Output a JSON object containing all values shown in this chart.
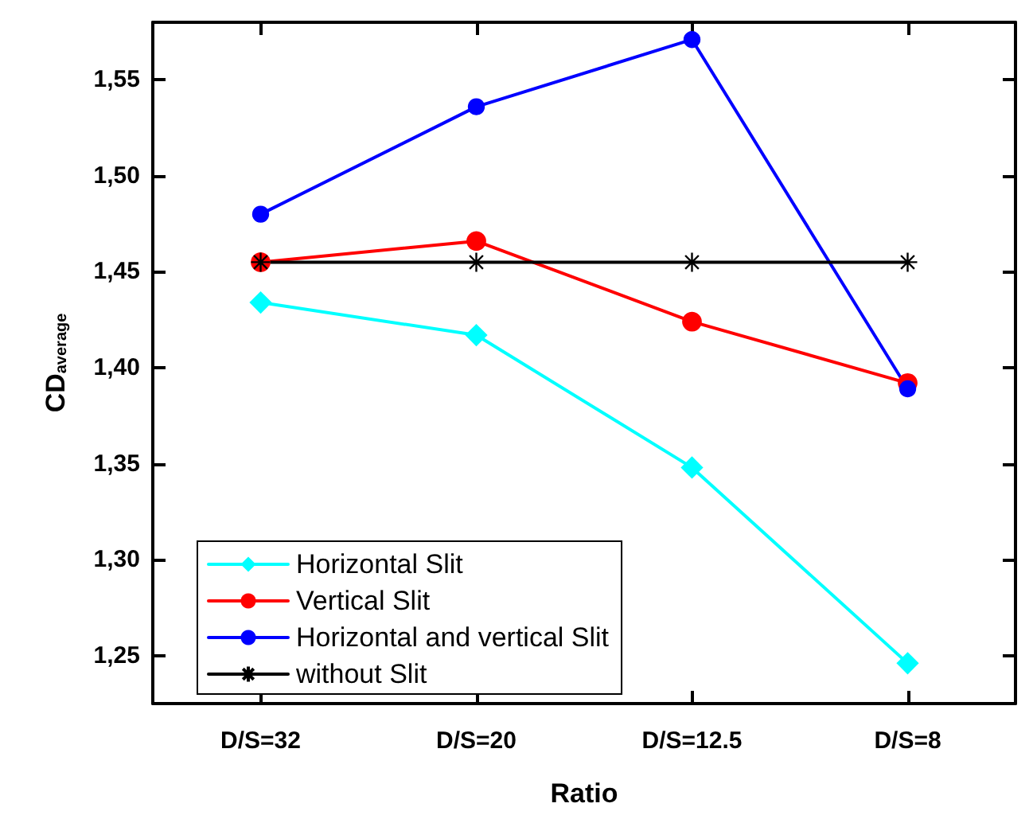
{
  "chart_data": {
    "type": "line",
    "xlabel": "Ratio",
    "ylabel": "CD$_{average}$",
    "categories": [
      "D/S=32",
      "D/S=20",
      "D/S=12.5",
      "D/S=8"
    ],
    "series": [
      {
        "name": "Horizontal Slit",
        "color": "#00ffff",
        "marker": "diamond",
        "values": [
          1.434,
          1.417,
          1.348,
          1.246
        ]
      },
      {
        "name": "Vertical Slit",
        "color": "#ff0000",
        "marker": "circle",
        "values": [
          1.455,
          1.466,
          1.424,
          1.392
        ]
      },
      {
        "name": "Horizontal and vertical Slit",
        "color": "#0000ff",
        "marker": "circle",
        "values": [
          1.48,
          1.536,
          1.571,
          1.389
        ]
      },
      {
        "name": "without Slit",
        "color": "#000000",
        "marker": "cross",
        "values": [
          1.455,
          1.455,
          1.455,
          1.455
        ]
      }
    ],
    "ylim": [
      1.225,
      1.58
    ],
    "yticks": [
      {
        "value": 1.25,
        "label": "1,25"
      },
      {
        "value": 1.3,
        "label": "1,30"
      },
      {
        "value": 1.35,
        "label": "1,35"
      },
      {
        "value": 1.4,
        "label": "1,40"
      },
      {
        "value": 1.45,
        "label": "1,45"
      },
      {
        "value": 1.5,
        "label": "1,50"
      },
      {
        "value": 1.55,
        "label": "1,55"
      }
    ],
    "grid": false,
    "legend": "bottom left",
    "line_style": "solid"
  }
}
